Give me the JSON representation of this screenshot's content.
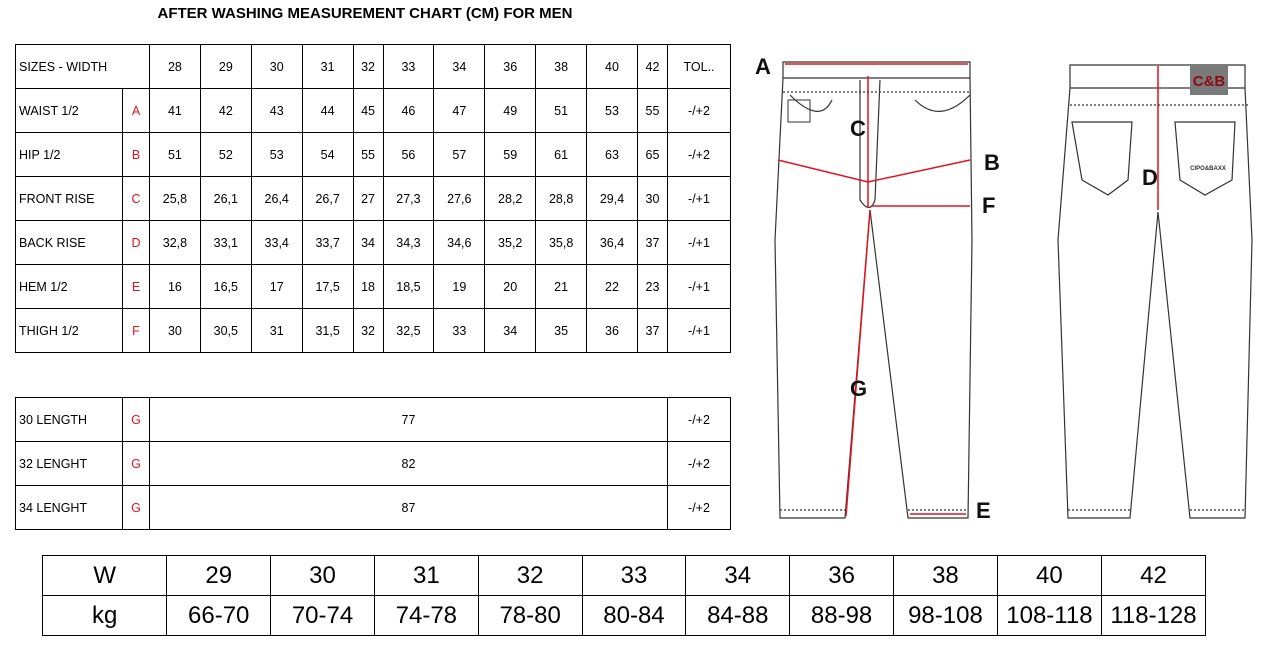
{
  "title": "AFTER WASHING MEASUREMENT CHART (CM) FOR MEN",
  "main_table": {
    "header": {
      "label": "SIZES - WIDTH",
      "sizes": [
        "28",
        "29",
        "30",
        "31",
        "32",
        "33",
        "34",
        "36",
        "38",
        "40",
        "42"
      ],
      "tol": "TOL.."
    },
    "rows": [
      {
        "label": "WAIST 1/2",
        "letter": "A",
        "values": [
          "41",
          "42",
          "43",
          "44",
          "45",
          "46",
          "47",
          "49",
          "51",
          "53",
          "55"
        ],
        "tol": "-/+2"
      },
      {
        "label": "HIP 1/2",
        "letter": "B",
        "values": [
          "51",
          "52",
          "53",
          "54",
          "55",
          "56",
          "57",
          "59",
          "61",
          "63",
          "65"
        ],
        "tol": "-/+2"
      },
      {
        "label": "FRONT RISE",
        "letter": "C",
        "values": [
          "25,8",
          "26,1",
          "26,4",
          "26,7",
          "27",
          "27,3",
          "27,6",
          "28,2",
          "28,8",
          "29,4",
          "30"
        ],
        "tol": "-/+1"
      },
      {
        "label": "BACK RISE",
        "letter": "D",
        "values": [
          "32,8",
          "33,1",
          "33,4",
          "33,7",
          "34",
          "34,3",
          "34,6",
          "35,2",
          "35,8",
          "36,4",
          "37"
        ],
        "tol": "-/+1"
      },
      {
        "label": "HEM 1/2",
        "letter": "E",
        "values": [
          "16",
          "16,5",
          "17",
          "17,5",
          "18",
          "18,5",
          "19",
          "20",
          "21",
          "22",
          "23"
        ],
        "tol": "-/+1"
      },
      {
        "label": "THIGH 1/2",
        "letter": "F",
        "values": [
          "30",
          "30,5",
          "31",
          "31,5",
          "32",
          "32,5",
          "33",
          "34",
          "35",
          "36",
          "37"
        ],
        "tol": "-/+1"
      }
    ]
  },
  "length_table": [
    {
      "label": "30 LENGTH",
      "letter": "G",
      "value": "77",
      "tol": "-/+2"
    },
    {
      "label": "32 LENGHT",
      "letter": "G",
      "value": "82",
      "tol": "-/+2"
    },
    {
      "label": "34 LENGHT",
      "letter": "G",
      "value": "87",
      "tol": "-/+2"
    }
  ],
  "weight_table": {
    "w_label": "W",
    "kg_label": "kg",
    "w": [
      "29",
      "30",
      "31",
      "32",
      "33",
      "34",
      "36",
      "38",
      "40",
      "42"
    ],
    "kg": [
      "66-70",
      "70-74",
      "74-78",
      "78-80",
      "80-84",
      "84-88",
      "88-98",
      "98-108",
      "108-118",
      "118-128"
    ]
  },
  "diagram": {
    "labels": {
      "a": "A",
      "b": "B",
      "c": "C",
      "d": "D",
      "e": "E",
      "f": "F",
      "g": "G"
    },
    "logo": "C&B",
    "back_pocket_text": "CIPO&BAXX",
    "arrow_color": "#e0141e",
    "logo_bg": "#7a7a7a",
    "logo_color": "#8b0d14"
  }
}
